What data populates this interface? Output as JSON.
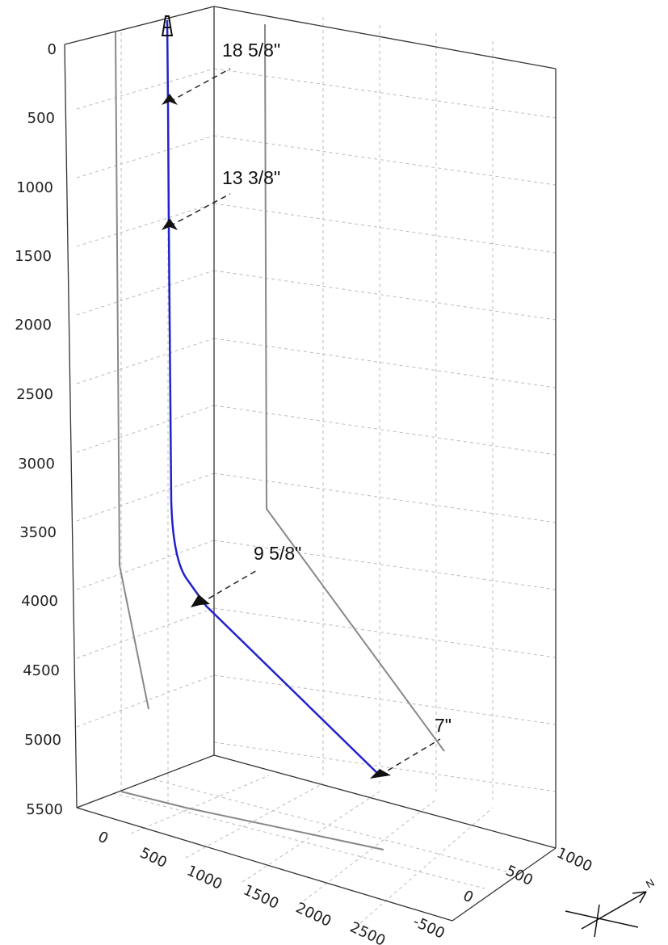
{
  "colors": {
    "well_path": "#2222cc",
    "projection": "#888888",
    "frame": "#333333",
    "grid": "#bbbbbb",
    "marker": "#111111"
  },
  "depth_axis": {
    "ticks": [
      "0",
      "500",
      "1000",
      "1500",
      "2000",
      "2500",
      "3000",
      "3500",
      "4000",
      "4500",
      "5000",
      "5500"
    ]
  },
  "x_axis": {
    "ticks": [
      "0",
      "500",
      "1000",
      "1500",
      "2000",
      "2500"
    ]
  },
  "y_axis": {
    "ticks": [
      "-500",
      "0",
      "500",
      "1000"
    ]
  },
  "north_arrow": {
    "label": "N",
    "icon": "north-arrow-icon"
  },
  "casings": [
    {
      "label": "18 5/8\"",
      "depth": 450
    },
    {
      "label": "13 3/8\"",
      "depth": 1290
    },
    {
      "label": "9 5/8\"",
      "depth": 4030
    },
    {
      "label": "7\"",
      "depth": 5180
    }
  ]
}
